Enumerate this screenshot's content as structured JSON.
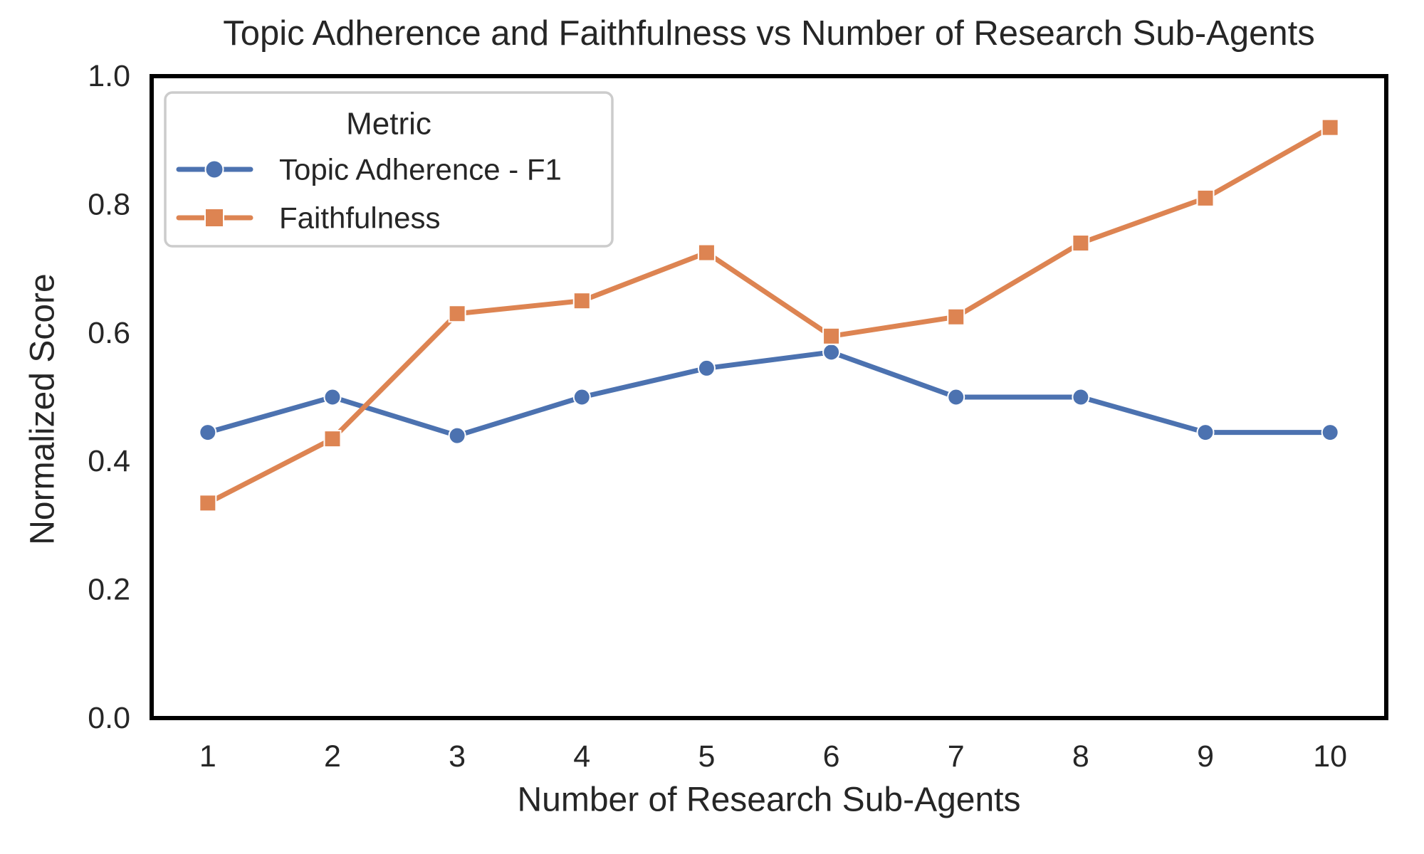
{
  "chart_data": {
    "type": "line",
    "title": "Topic Adherence and Faithfulness vs Number of Research Sub-Agents",
    "xlabel": "Number of Research Sub-Agents",
    "ylabel": "Normalized Score",
    "x": [
      1,
      2,
      3,
      4,
      5,
      6,
      7,
      8,
      9,
      10
    ],
    "x_tick_labels": [
      "1",
      "2",
      "3",
      "4",
      "5",
      "6",
      "7",
      "8",
      "9",
      "10"
    ],
    "y_ticks": [
      0.0,
      0.2,
      0.4,
      0.6,
      0.8,
      1.0
    ],
    "y_tick_labels": [
      "0.0",
      "0.2",
      "0.4",
      "0.6",
      "0.8",
      "1.0"
    ],
    "xlim": [
      0.55,
      10.45
    ],
    "ylim": [
      0.0,
      1.0
    ],
    "grid": false,
    "background": "#ffffff",
    "spine_color": "#000000",
    "text_color": "#262626",
    "legend": {
      "title": "Metric",
      "position": "upper left",
      "border_color": "#cccccc"
    },
    "series": [
      {
        "name": "Topic Adherence - F1",
        "color": "#4C72B0",
        "marker": "circle",
        "values": [
          0.445,
          0.5,
          0.44,
          0.5,
          0.545,
          0.57,
          0.5,
          0.5,
          0.445,
          0.445
        ]
      },
      {
        "name": "Faithfulness",
        "color": "#DD8452",
        "marker": "square",
        "values": [
          0.335,
          0.435,
          0.63,
          0.65,
          0.725,
          0.595,
          0.625,
          0.74,
          0.81,
          0.92
        ]
      }
    ]
  }
}
